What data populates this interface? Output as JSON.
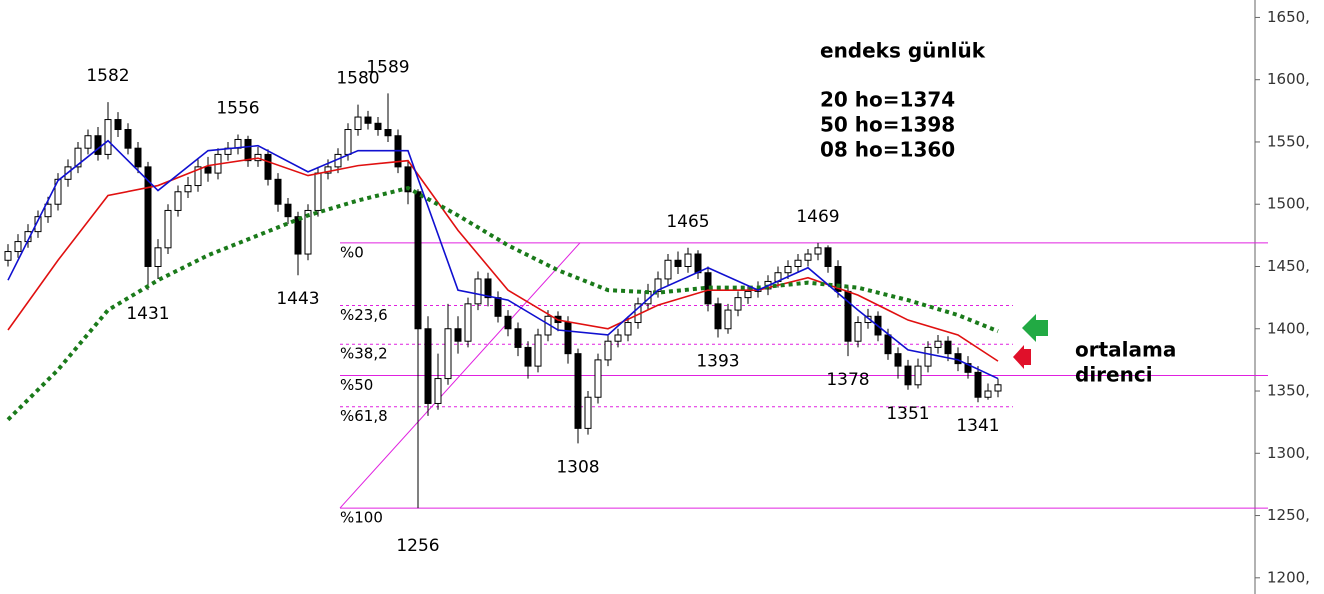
{
  "chart_data": {
    "type": "candlestick",
    "title": "endeks günlük",
    "ylim": [
      1187,
      1664
    ],
    "yticks": [
      {
        "value": 1200,
        "label": "1200,"
      },
      {
        "value": 1250,
        "label": "1250,"
      },
      {
        "value": 1300,
        "label": "1300,"
      },
      {
        "value": 1350,
        "label": "1350,"
      },
      {
        "value": 1400,
        "label": "1400,"
      },
      {
        "value": 1450,
        "label": "1450,"
      },
      {
        "value": 1500,
        "label": "1500,"
      },
      {
        "value": 1550,
        "label": "1550,"
      },
      {
        "value": 1600,
        "label": "1600,"
      },
      {
        "value": 1650,
        "label": "1650,"
      }
    ],
    "candles": {
      "open": [
        1455,
        1462,
        1470,
        1478,
        1490,
        1500,
        1520,
        1530,
        1545,
        1555,
        1540,
        1568,
        1560,
        1545,
        1530,
        1450,
        1465,
        1495,
        1510,
        1515,
        1530,
        1525,
        1540,
        1545,
        1552,
        1535,
        1540,
        1520,
        1500,
        1490,
        1460,
        1495,
        1525,
        1530,
        1540,
        1560,
        1570,
        1565,
        1560,
        1555,
        1530,
        1510,
        1400,
        1340,
        1360,
        1400,
        1390,
        1420,
        1440,
        1425,
        1410,
        1400,
        1385,
        1370,
        1395,
        1410,
        1405,
        1380,
        1320,
        1345,
        1375,
        1390,
        1395,
        1405,
        1420,
        1430,
        1440,
        1455,
        1450,
        1460,
        1445,
        1420,
        1400,
        1415,
        1425,
        1430,
        1432,
        1438,
        1445,
        1450,
        1455,
        1460,
        1465,
        1450,
        1430,
        1390,
        1405,
        1410,
        1395,
        1380,
        1370,
        1355,
        1370,
        1385,
        1390,
        1380,
        1372,
        1365,
        1345,
        1350
      ],
      "high": [
        1468,
        1476,
        1484,
        1495,
        1506,
        1525,
        1536,
        1550,
        1560,
        1562,
        1582,
        1574,
        1565,
        1550,
        1534,
        1472,
        1500,
        1515,
        1522,
        1536,
        1538,
        1545,
        1550,
        1556,
        1555,
        1546,
        1544,
        1525,
        1505,
        1494,
        1500,
        1530,
        1536,
        1545,
        1565,
        1580,
        1575,
        1570,
        1589,
        1560,
        1535,
        1512,
        1410,
        1380,
        1420,
        1410,
        1425,
        1446,
        1445,
        1430,
        1415,
        1405,
        1390,
        1400,
        1415,
        1414,
        1410,
        1384,
        1350,
        1380,
        1395,
        1400,
        1410,
        1425,
        1436,
        1446,
        1460,
        1462,
        1465,
        1463,
        1450,
        1425,
        1420,
        1430,
        1435,
        1438,
        1443,
        1450,
        1455,
        1460,
        1464,
        1469,
        1467,
        1455,
        1434,
        1410,
        1416,
        1414,
        1400,
        1385,
        1375,
        1376,
        1390,
        1395,
        1394,
        1385,
        1378,
        1370,
        1356,
        1360
      ],
      "low": [
        1450,
        1457,
        1465,
        1473,
        1485,
        1495,
        1514,
        1525,
        1540,
        1535,
        1536,
        1554,
        1540,
        1525,
        1431,
        1440,
        1460,
        1490,
        1505,
        1510,
        1518,
        1520,
        1535,
        1540,
        1530,
        1530,
        1515,
        1494,
        1484,
        1443,
        1455,
        1490,
        1520,
        1525,
        1535,
        1555,
        1560,
        1555,
        1550,
        1525,
        1500,
        1256,
        1330,
        1335,
        1355,
        1380,
        1385,
        1415,
        1418,
        1405,
        1394,
        1378,
        1360,
        1365,
        1390,
        1398,
        1372,
        1308,
        1315,
        1340,
        1370,
        1385,
        1390,
        1400,
        1415,
        1425,
        1435,
        1444,
        1445,
        1440,
        1414,
        1393,
        1396,
        1410,
        1420,
        1425,
        1427,
        1433,
        1440,
        1445,
        1450,
        1455,
        1445,
        1425,
        1378,
        1385,
        1400,
        1390,
        1375,
        1360,
        1351,
        1352,
        1365,
        1380,
        1374,
        1366,
        1360,
        1341,
        1343,
        1345
      ],
      "close": [
        1462,
        1470,
        1478,
        1490,
        1500,
        1520,
        1530,
        1545,
        1555,
        1540,
        1568,
        1560,
        1545,
        1530,
        1450,
        1465,
        1495,
        1510,
        1515,
        1530,
        1525,
        1540,
        1545,
        1552,
        1535,
        1540,
        1520,
        1500,
        1490,
        1460,
        1495,
        1525,
        1530,
        1540,
        1560,
        1570,
        1565,
        1560,
        1555,
        1530,
        1510,
        1400,
        1340,
        1360,
        1400,
        1390,
        1420,
        1440,
        1425,
        1410,
        1400,
        1385,
        1370,
        1395,
        1410,
        1405,
        1380,
        1320,
        1345,
        1375,
        1390,
        1395,
        1405,
        1420,
        1430,
        1440,
        1455,
        1450,
        1460,
        1445,
        1420,
        1400,
        1415,
        1425,
        1430,
        1432,
        1438,
        1445,
        1450,
        1455,
        1460,
        1465,
        1450,
        1430,
        1390,
        1405,
        1410,
        1395,
        1380,
        1370,
        1355,
        1370,
        1385,
        1390,
        1380,
        1372,
        1365,
        1345,
        1350,
        1355
      ]
    },
    "series": [
      {
        "name": "20 ho=1374",
        "color": "#e01010",
        "style": "solid",
        "x": [
          0,
          5,
          10,
          15,
          20,
          25,
          30,
          35,
          40,
          45,
          50,
          55,
          60,
          65,
          70,
          75,
          80,
          85,
          90,
          95,
          99
        ],
        "values": [
          1399,
          1455,
          1507,
          1515,
          1531,
          1537,
          1523,
          1531,
          1535,
          1479,
          1431,
          1407,
          1400,
          1419,
          1431,
          1431,
          1441,
          1427,
          1407,
          1395,
          1374
        ]
      },
      {
        "name": "50 ho=1398",
        "color": "#1a7a1a",
        "style": "dotted",
        "x": [
          0,
          5,
          10,
          15,
          20,
          25,
          30,
          35,
          40,
          45,
          50,
          55,
          60,
          65,
          70,
          75,
          80,
          85,
          90,
          95,
          99
        ],
        "values": [
          1327,
          1367,
          1415,
          1439,
          1459,
          1475,
          1491,
          1503,
          1513,
          1491,
          1467,
          1447,
          1431,
          1429,
          1433,
          1433,
          1437,
          1433,
          1423,
          1411,
          1398
        ]
      },
      {
        "name": "08 ho=1360",
        "color": "#1010d0",
        "style": "solid",
        "x": [
          0,
          5,
          10,
          15,
          20,
          25,
          30,
          35,
          40,
          45,
          50,
          55,
          60,
          65,
          70,
          75,
          80,
          85,
          90,
          95,
          99
        ],
        "values": [
          1439,
          1519,
          1551,
          1511,
          1543,
          1547,
          1526,
          1543,
          1543,
          1431,
          1423,
          1399,
          1395,
          1431,
          1449,
          1431,
          1449,
          1415,
          1383,
          1375,
          1360
        ]
      }
    ],
    "fibonacci": {
      "color": "#e020e0",
      "levels": [
        {
          "value": 1469,
          "label": "%0",
          "style": "solid"
        },
        {
          "value": 1418.7,
          "label": "%23,6",
          "style": "dashed"
        },
        {
          "value": 1387.6,
          "label": "%38,2",
          "style": "dashed"
        },
        {
          "value": 1362.5,
          "label": "%50",
          "style": "solid"
        },
        {
          "value": 1337.4,
          "label": "%61,8",
          "style": "dashed"
        },
        {
          "value": 1256,
          "label": "%100",
          "style": "solid"
        }
      ]
    },
    "peaks": [
      {
        "x": 10,
        "value": 1582
      },
      {
        "x": 14,
        "value": 1431
      },
      {
        "x": 23,
        "value": 1556
      },
      {
        "x": 29,
        "value": 1443
      },
      {
        "x": 35,
        "value": 1580
      },
      {
        "x": 38,
        "value": 1589
      },
      {
        "x": 41,
        "value": 1256
      },
      {
        "x": 57,
        "value": 1308
      },
      {
        "x": 68,
        "value": 1465
      },
      {
        "x": 71,
        "value": 1393
      },
      {
        "x": 81,
        "value": 1469
      },
      {
        "x": 84,
        "value": 1378
      },
      {
        "x": 90,
        "value": 1351
      },
      {
        "x": 97,
        "value": 1341
      }
    ],
    "note_lines": [
      "ortalama",
      "direnci"
    ]
  }
}
